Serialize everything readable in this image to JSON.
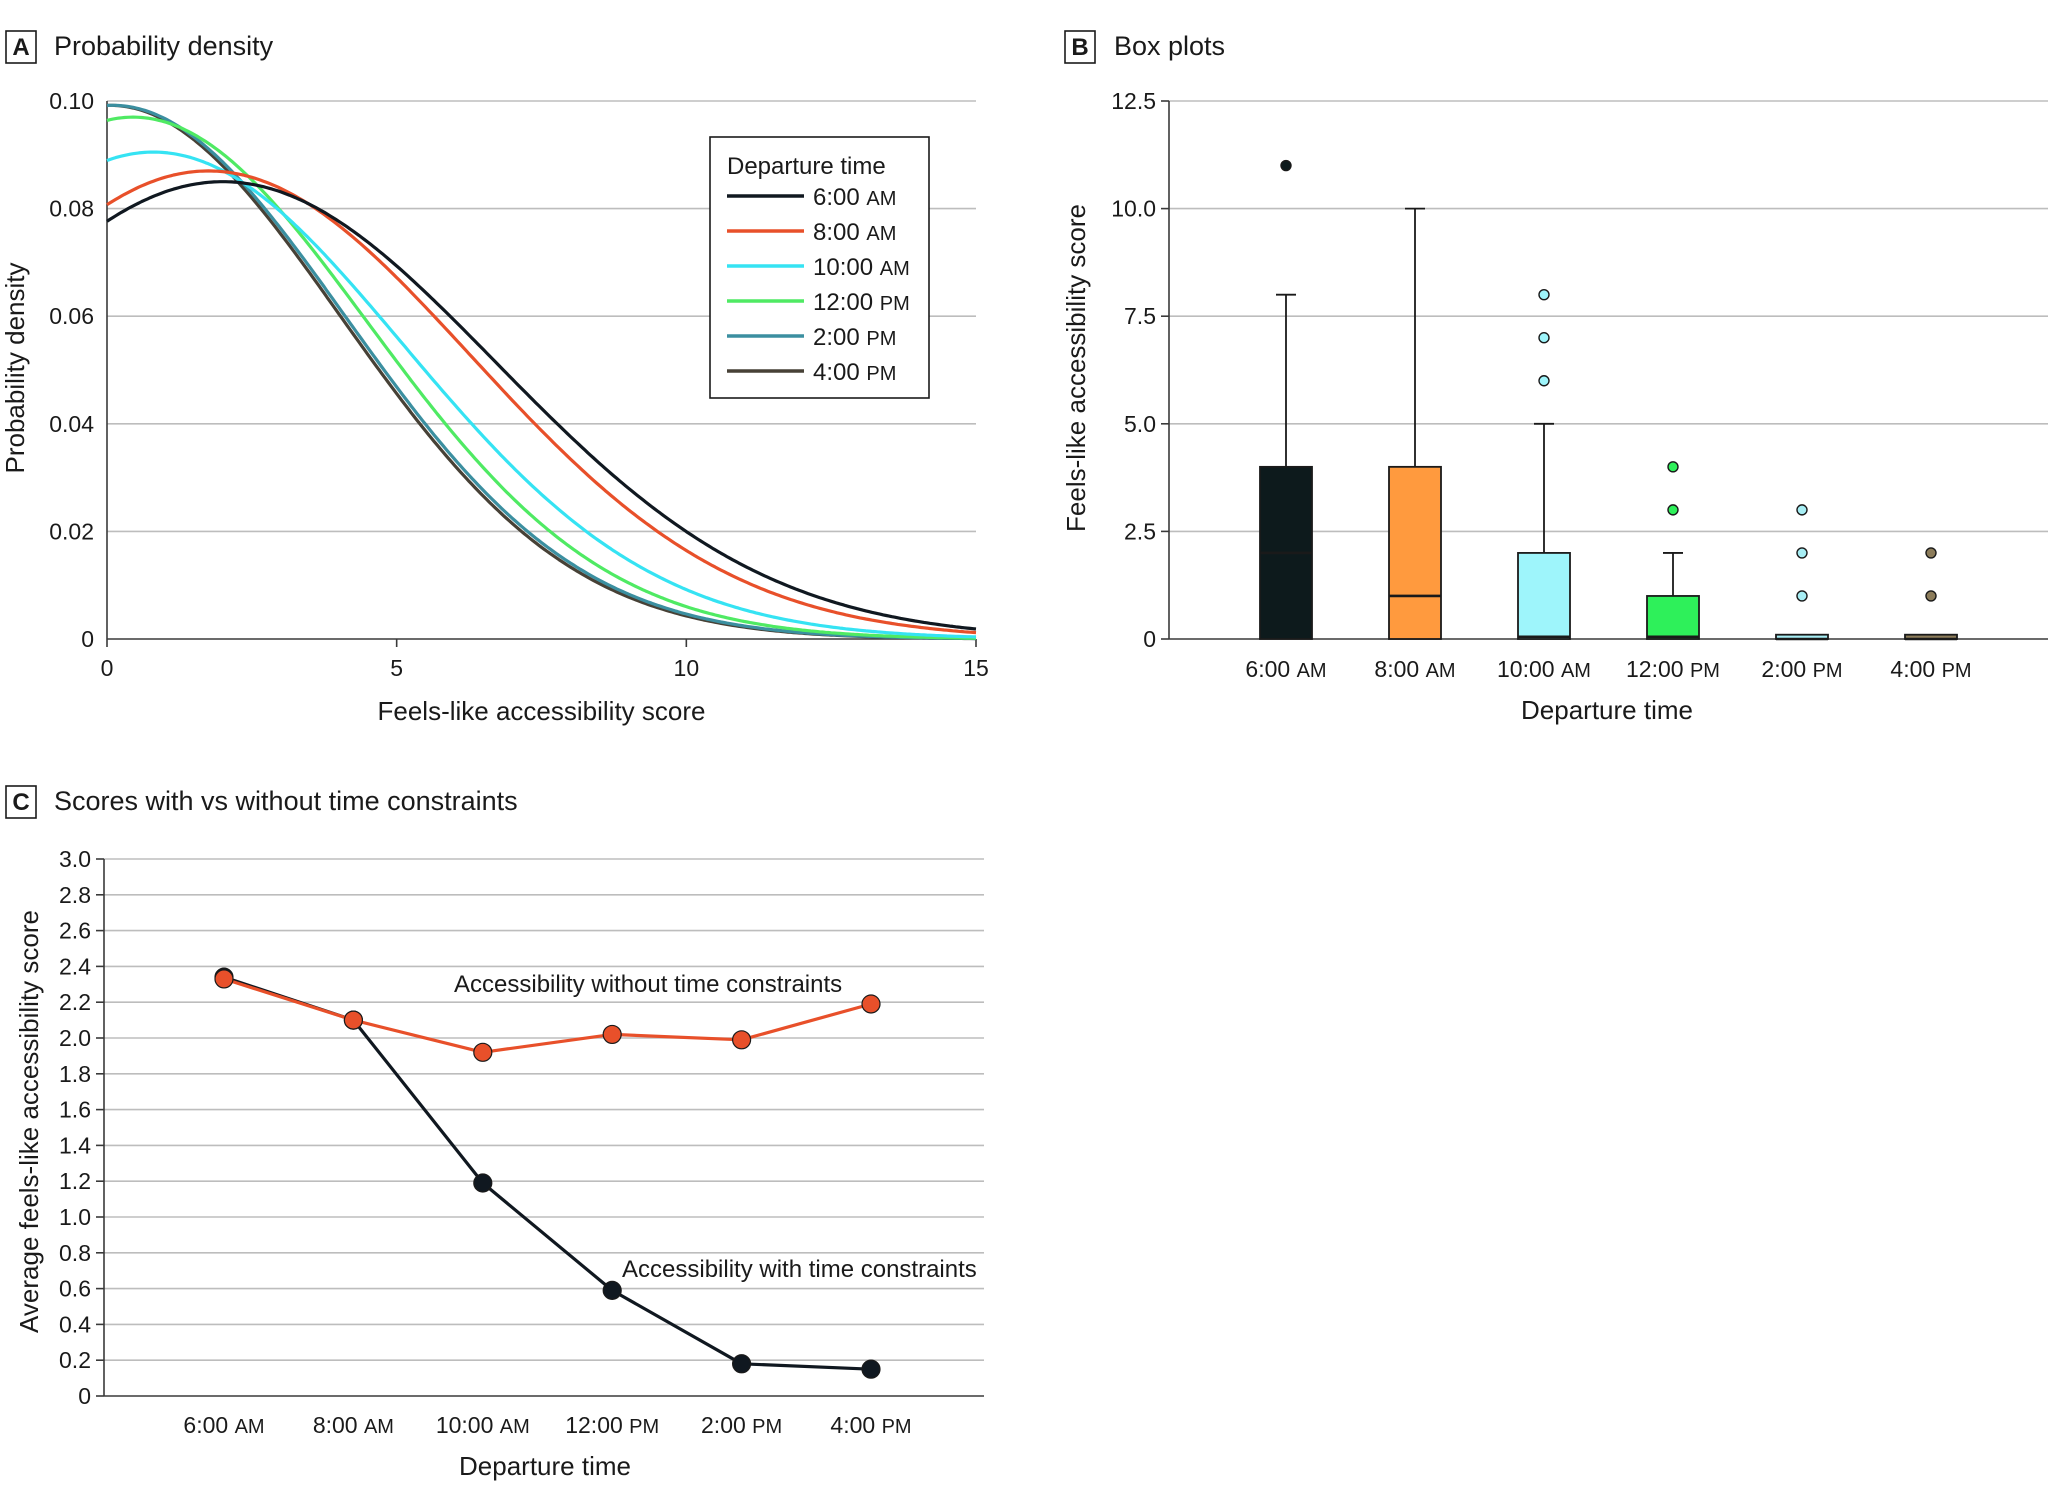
{
  "colors": {
    "t6": "#101820",
    "t8": "#e8502a",
    "t10": "#35e3f3",
    "t12": "#4fea63",
    "t2": "#3b8fa0",
    "t4": "#474136",
    "box6": "#0d1a1c",
    "box8": "#ff9a3e",
    "box10": "#9ef5fb",
    "box12": "#2ef05a",
    "box2": "#a7eef4",
    "box4": "#8c7c5a",
    "without": "#e8502a",
    "with": "#101820"
  },
  "chart_data": [
    {
      "panel": "A",
      "type": "line",
      "title": "Probability density",
      "xlabel": "Feels-like accessibility score",
      "ylabel": "Probability density",
      "xlim": [
        0,
        15
      ],
      "ylim": [
        0,
        0.1
      ],
      "xticks": [
        "0",
        "5",
        "10",
        "15"
      ],
      "yticks": [
        "0",
        "0.02",
        "0.04",
        "0.06",
        "0.08",
        "0.10"
      ],
      "legend": {
        "title": "Departure time",
        "position": "top-right",
        "items": [
          {
            "label": "6:00",
            "suffix": "AM",
            "color_key": "t6"
          },
          {
            "label": "8:00",
            "suffix": "AM",
            "color_key": "t8"
          },
          {
            "label": "10:00",
            "suffix": "AM",
            "color_key": "t10"
          },
          {
            "label": "12:00",
            "suffix": "PM",
            "color_key": "t12"
          },
          {
            "label": "2:00",
            "suffix": "PM",
            "color_key": "t2"
          },
          {
            "label": "4:00",
            "suffix": "PM",
            "color_key": "t4"
          }
        ]
      },
      "series": [
        {
          "name": "6:00 AM",
          "color_key": "t6",
          "mu": 2.0,
          "sigma": 4.7,
          "peak": 0.085
        },
        {
          "name": "8:00 AM",
          "color_key": "t8",
          "mu": 1.75,
          "sigma": 4.52,
          "peak": 0.087
        },
        {
          "name": "10:00 AM",
          "color_key": "t10",
          "mu": 0.8,
          "sigma": 4.3,
          "peak": 0.0905
        },
        {
          "name": "12:00 PM",
          "color_key": "t12",
          "mu": 0.45,
          "sigma": 4.05,
          "peak": 0.097
        },
        {
          "name": "2:00 PM",
          "color_key": "t2",
          "mu": 0.1,
          "sigma": 4.0,
          "peak": 0.0992
        },
        {
          "name": "4:00 PM",
          "color_key": "t4",
          "mu": 0.05,
          "sigma": 3.97,
          "peak": 0.0992
        }
      ]
    },
    {
      "panel": "B",
      "type": "box",
      "title": "Box plots",
      "xlabel": "Departure time",
      "ylabel": "Feels-like accessibility score",
      "ylim": [
        0,
        12.5
      ],
      "yticks": [
        "0",
        "2.5",
        "5.0",
        "7.5",
        "10.0",
        "12.5"
      ],
      "boxes": [
        {
          "label": "6:00",
          "suffix": "AM",
          "q1": 0,
          "median": 2,
          "q3": 4,
          "whisker_low": 0,
          "whisker_high": 8,
          "outliers": [
            11
          ],
          "color_key": "box6"
        },
        {
          "label": "8:00",
          "suffix": "AM",
          "q1": 0,
          "median": 1,
          "q3": 4,
          "whisker_low": 0,
          "whisker_high": 10,
          "outliers": [],
          "color_key": "box8"
        },
        {
          "label": "10:00",
          "suffix": "AM",
          "q1": 0,
          "median": 0.05,
          "q3": 2,
          "whisker_low": 0,
          "whisker_high": 5,
          "outliers": [
            6,
            7,
            8
          ],
          "color_key": "box10"
        },
        {
          "label": "12:00",
          "suffix": "PM",
          "q1": 0,
          "median": 0.05,
          "q3": 1,
          "whisker_low": 0,
          "whisker_high": 2,
          "outliers": [
            3,
            4
          ],
          "color_key": "box12"
        },
        {
          "label": "2:00",
          "suffix": "PM",
          "q1": 0,
          "median": 0,
          "q3": 0.1,
          "whisker_low": 0,
          "whisker_high": 0.1,
          "outliers": [
            1,
            2,
            3
          ],
          "color_key": "box2"
        },
        {
          "label": "4:00",
          "suffix": "PM",
          "q1": 0,
          "median": 0,
          "q3": 0.1,
          "whisker_low": 0,
          "whisker_high": 0.1,
          "outliers": [
            1,
            2
          ],
          "color_key": "box4"
        }
      ]
    },
    {
      "panel": "C",
      "type": "line",
      "title": "Scores with vs without time constraints",
      "xlabel": "Departure time",
      "ylabel": "Average feels-like accessibility score",
      "ylim": [
        0,
        3.0
      ],
      "yticks": [
        "0",
        "0.2",
        "0.4",
        "0.6",
        "0.8",
        "1.0",
        "1.2",
        "1.4",
        "1.6",
        "1.8",
        "2.0",
        "2.2",
        "2.4",
        "2.6",
        "2.8",
        "3.0"
      ],
      "categories": [
        {
          "label": "6:00",
          "suffix": "AM"
        },
        {
          "label": "8:00",
          "suffix": "AM"
        },
        {
          "label": "10:00",
          "suffix": "AM"
        },
        {
          "label": "12:00",
          "suffix": "PM"
        },
        {
          "label": "2:00",
          "suffix": "PM"
        },
        {
          "label": "4:00",
          "suffix": "PM"
        }
      ],
      "series": [
        {
          "name": "Accessibility without time constraints",
          "color_key": "without",
          "values": [
            2.33,
            2.1,
            1.92,
            2.02,
            1.99,
            2.19
          ]
        },
        {
          "name": "Accessibility with time constraints",
          "color_key": "with",
          "values": [
            2.34,
            2.1,
            1.19,
            0.59,
            0.18,
            0.15
          ]
        }
      ]
    }
  ]
}
